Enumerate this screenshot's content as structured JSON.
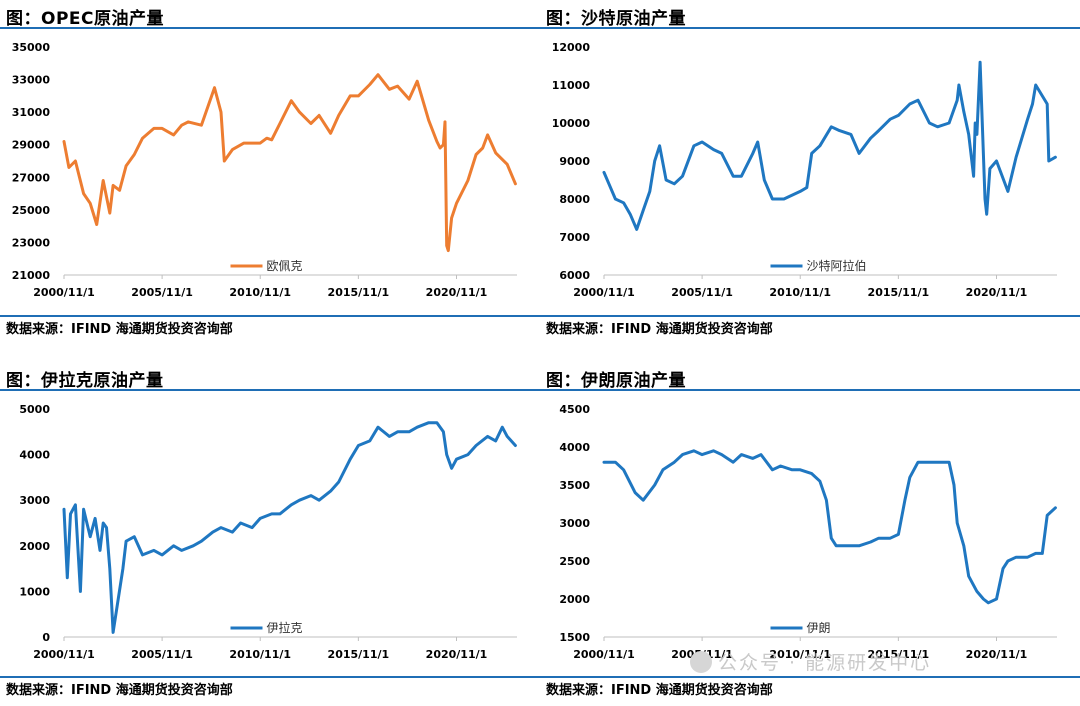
{
  "panels": [
    {
      "title": "图：OPEC原油产量",
      "source": "数据来源：IFIND   海通期货投资咨询部",
      "color": "#ed7d31"
    },
    {
      "title": "图：沙特原油产量",
      "source": "数据来源：IFIND   海通期货投资咨询部",
      "color": "#1f77c1"
    },
    {
      "title": "图：伊拉克原油产量",
      "source": "数据来源：IFIND   海通期货投资咨询部",
      "color": "#1f77c1"
    },
    {
      "title": "图：伊朗原油产量",
      "source": "数据来源：IFIND   海通期货投资咨询部",
      "color": "#1f77c1"
    }
  ],
  "watermark": "公众号 · 能源研发中心",
  "chart_data": [
    {
      "type": "line",
      "title": "图：OPEC原油产量",
      "xlabel": "",
      "ylabel": "",
      "x_ticks": [
        "2000/11/1",
        "2005/11/1",
        "2010/11/1",
        "2015/11/1",
        "2020/11/1"
      ],
      "ylim": [
        21000,
        35000
      ],
      "y_ticks": [
        21000,
        23000,
        25000,
        27000,
        29000,
        31000,
        33000,
        35000
      ],
      "grid": false,
      "legend": "bottom",
      "series": [
        {
          "name": "欧佩克",
          "x": [
            "2000/11/1",
            "2001/2/1",
            "2001/6/1",
            "2001/11/1",
            "2002/3/1",
            "2002/7/1",
            "2002/11/1",
            "2003/3/1",
            "2003/5/1",
            "2003/9/1",
            "2004/1/1",
            "2004/6/1",
            "2004/11/1",
            "2005/6/1",
            "2005/11/1",
            "2006/6/1",
            "2006/11/1",
            "2007/3/1",
            "2007/11/1",
            "2008/7/1",
            "2008/11/1",
            "2009/1/1",
            "2009/6/1",
            "2010/1/1",
            "2010/11/1",
            "2011/3/1",
            "2011/6/1",
            "2011/11/1",
            "2012/6/1",
            "2012/11/1",
            "2013/6/1",
            "2013/11/1",
            "2014/6/1",
            "2014/11/1",
            "2015/6/1",
            "2015/11/1",
            "2016/6/1",
            "2016/11/1",
            "2017/6/1",
            "2017/11/1",
            "2018/6/1",
            "2018/11/1",
            "2019/6/1",
            "2019/11/1",
            "2020/1/1",
            "2020/3/1",
            "2020/4/1",
            "2020/5/1",
            "2020/6/1",
            "2020/8/1",
            "2020/11/1",
            "2021/6/1",
            "2021/11/1",
            "2022/3/1",
            "2022/6/1",
            "2022/11/1",
            "2023/6/1",
            "2023/11/1"
          ],
          "values": [
            29200,
            27600,
            28000,
            26000,
            25400,
            24100,
            26800,
            24800,
            26500,
            26200,
            27700,
            28400,
            29400,
            30000,
            30000,
            29600,
            30200,
            30400,
            30200,
            32500,
            31000,
            28000,
            28700,
            29100,
            29100,
            29400,
            29300,
            30300,
            31700,
            31000,
            30300,
            30800,
            29700,
            30800,
            32000,
            32000,
            32700,
            33300,
            32400,
            32600,
            31800,
            32900,
            30500,
            29200,
            28800,
            29000,
            30400,
            22800,
            22500,
            24500,
            25400,
            26800,
            28400,
            28800,
            29600,
            28500,
            27800,
            26600
          ]
        }
      ]
    },
    {
      "type": "line",
      "title": "图：沙特原油产量",
      "xlabel": "",
      "ylabel": "",
      "x_ticks": [
        "2000/11/1",
        "2005/11/1",
        "2010/11/1",
        "2015/11/1",
        "2020/11/1"
      ],
      "ylim": [
        6000,
        12000
      ],
      "y_ticks": [
        6000,
        7000,
        8000,
        9000,
        10000,
        11000,
        12000
      ],
      "grid": false,
      "legend": "bottom",
      "series": [
        {
          "name": "沙特阿拉伯",
          "x": [
            "2000/11/1",
            "2001/2/1",
            "2001/6/1",
            "2001/11/1",
            "2002/3/1",
            "2002/7/1",
            "2002/11/1",
            "2003/3/1",
            "2003/6/1",
            "2003/9/1",
            "2004/1/1",
            "2004/6/1",
            "2004/11/1",
            "2005/6/1",
            "2005/11/1",
            "2006/6/1",
            "2006/11/1",
            "2007/6/1",
            "2007/11/1",
            "2008/6/1",
            "2008/9/1",
            "2009/1/1",
            "2009/6/1",
            "2010/1/1",
            "2010/11/1",
            "2011/3/1",
            "2011/6/1",
            "2011/11/1",
            "2012/6/1",
            "2012/11/1",
            "2013/6/1",
            "2013/11/1",
            "2014/6/1",
            "2014/11/1",
            "2015/6/1",
            "2015/11/1",
            "2016/6/1",
            "2016/11/1",
            "2017/6/1",
            "2017/11/1",
            "2018/6/1",
            "2018/11/1",
            "2018/12/1",
            "2019/3/1",
            "2019/6/1",
            "2019/9/1",
            "2019/10/1",
            "2019/11/1",
            "2020/1/1",
            "2020/4/1",
            "2020/5/1",
            "2020/7/1",
            "2020/11/1",
            "2021/6/1",
            "2021/11/1",
            "2022/6/1",
            "2022/9/1",
            "2022/11/1",
            "2023/6/1",
            "2023/7/1",
            "2023/11/1"
          ],
          "values": [
            8700,
            8400,
            8000,
            7900,
            7600,
            7200,
            7700,
            8200,
            9000,
            9400,
            8500,
            8400,
            8600,
            9400,
            9500,
            9300,
            9200,
            8600,
            8600,
            9200,
            9500,
            8500,
            8000,
            8000,
            8200,
            8300,
            9200,
            9400,
            9900,
            9800,
            9700,
            9200,
            9600,
            9800,
            10100,
            10200,
            10500,
            10600,
            10000,
            9900,
            10000,
            10600,
            11000,
            10300,
            9700,
            8600,
            10000,
            9700,
            11600,
            8000,
            7600,
            8800,
            9000,
            8200,
            9100,
            10100,
            10500,
            11000,
            10500,
            9000,
            9100
          ]
        }
      ]
    },
    {
      "type": "line",
      "title": "图：伊拉克原油产量",
      "xlabel": "",
      "ylabel": "",
      "x_ticks": [
        "2000/11/1",
        "2005/11/1",
        "2010/11/1",
        "2015/11/1",
        "2020/11/1"
      ],
      "ylim": [
        0,
        5000
      ],
      "y_ticks": [
        0,
        1000,
        2000,
        3000,
        4000,
        5000
      ],
      "grid": false,
      "legend": "bottom",
      "series": [
        {
          "name": "伊拉克",
          "x": [
            "2000/11/1",
            "2001/1/1",
            "2001/3/1",
            "2001/6/1",
            "2001/9/1",
            "2001/11/1",
            "2002/3/1",
            "2002/6/1",
            "2002/9/1",
            "2002/11/1",
            "2003/1/1",
            "2003/3/1",
            "2003/5/1",
            "2003/8/1",
            "2003/11/1",
            "2004/1/1",
            "2004/6/1",
            "2004/11/1",
            "2005/6/1",
            "2005/11/1",
            "2006/6/1",
            "2006/11/1",
            "2007/6/1",
            "2007/11/1",
            "2008/6/1",
            "2008/11/1",
            "2009/6/1",
            "2009/11/1",
            "2010/6/1",
            "2010/11/1",
            "2011/6/1",
            "2011/11/1",
            "2012/6/1",
            "2012/11/1",
            "2013/6/1",
            "2013/11/1",
            "2014/6/1",
            "2014/11/1",
            "2015/6/1",
            "2015/11/1",
            "2016/6/1",
            "2016/11/1",
            "2017/6/1",
            "2017/11/1",
            "2018/6/1",
            "2018/11/1",
            "2019/6/1",
            "2019/11/1",
            "2020/3/1",
            "2020/5/1",
            "2020/8/1",
            "2020/11/1",
            "2021/6/1",
            "2021/11/1",
            "2022/6/1",
            "2022/11/1",
            "2023/3/1",
            "2023/6/1",
            "2023/11/1"
          ],
          "values": [
            2800,
            1300,
            2700,
            2900,
            1000,
            2800,
            2200,
            2600,
            1900,
            2500,
            2400,
            1500,
            100,
            800,
            1500,
            2100,
            2200,
            1800,
            1900,
            1800,
            2000,
            1900,
            2000,
            2100,
            2300,
            2400,
            2300,
            2500,
            2400,
            2600,
            2700,
            2700,
            2900,
            3000,
            3100,
            3000,
            3200,
            3400,
            3900,
            4200,
            4300,
            4600,
            4400,
            4500,
            4500,
            4600,
            4700,
            4700,
            4500,
            4000,
            3700,
            3900,
            4000,
            4200,
            4400,
            4300,
            4600,
            4400,
            4200
          ]
        }
      ]
    },
    {
      "type": "line",
      "title": "图：伊朗原油产量",
      "xlabel": "",
      "ylabel": "",
      "x_ticks": [
        "2000/11/1",
        "2005/11/1",
        "2010/11/1",
        "2015/11/1",
        "2020/11/1"
      ],
      "ylim": [
        1500,
        4500
      ],
      "y_ticks": [
        1500,
        2000,
        2500,
        3000,
        3500,
        4000,
        4500
      ],
      "grid": false,
      "legend": "bottom",
      "series": [
        {
          "name": "伊朗",
          "x": [
            "2000/11/1",
            "2001/6/1",
            "2001/11/1",
            "2002/6/1",
            "2002/11/1",
            "2003/6/1",
            "2003/11/1",
            "2004/6/1",
            "2004/11/1",
            "2005/6/1",
            "2005/11/1",
            "2006/6/1",
            "2006/11/1",
            "2007/6/1",
            "2007/11/1",
            "2008/6/1",
            "2008/11/1",
            "2009/6/1",
            "2009/11/1",
            "2010/6/1",
            "2010/11/1",
            "2011/6/1",
            "2011/11/1",
            "2012/3/1",
            "2012/6/1",
            "2012/9/1",
            "2013/6/1",
            "2013/11/1",
            "2014/6/1",
            "2014/11/1",
            "2015/6/1",
            "2015/11/1",
            "2016/3/1",
            "2016/6/1",
            "2016/11/1",
            "2017/6/1",
            "2017/11/1",
            "2018/6/1",
            "2018/9/1",
            "2018/11/1",
            "2019/3/1",
            "2019/6/1",
            "2019/11/1",
            "2020/3/1",
            "2020/6/1",
            "2020/11/1",
            "2021/3/1",
            "2021/6/1",
            "2021/11/1",
            "2022/6/1",
            "2022/11/1",
            "2023/3/1",
            "2023/6/1",
            "2023/11/1"
          ],
          "values": [
            3800,
            3800,
            3700,
            3400,
            3300,
            3500,
            3700,
            3800,
            3900,
            3950,
            3900,
            3950,
            3900,
            3800,
            3900,
            3850,
            3900,
            3700,
            3750,
            3700,
            3700,
            3650,
            3550,
            3300,
            2800,
            2700,
            2700,
            2700,
            2750,
            2800,
            2800,
            2850,
            3300,
            3600,
            3800,
            3800,
            3800,
            3800,
            3500,
            3000,
            2700,
            2300,
            2100,
            2000,
            1950,
            2000,
            2400,
            2500,
            2550,
            2550,
            2600,
            2600,
            3100,
            3200
          ]
        }
      ]
    }
  ]
}
